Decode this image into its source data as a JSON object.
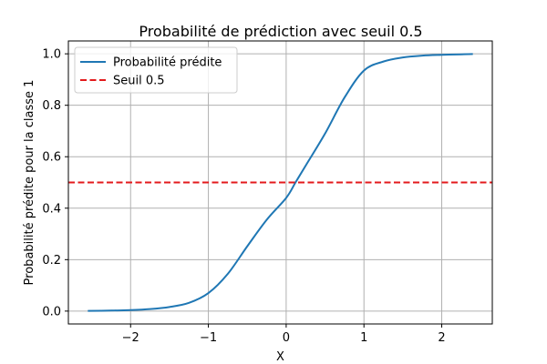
{
  "chart_data": {
    "type": "line",
    "title": "Probabilité de prédiction avec seuil 0.5",
    "xlabel": "X",
    "ylabel": "Probabilité prédite pour la classe 1",
    "xlim": [
      -2.8,
      2.65
    ],
    "ylim": [
      -0.05,
      1.05
    ],
    "xticks": [
      -2,
      -1,
      0,
      1,
      2
    ],
    "xtick_labels": [
      "−2",
      "−1",
      "0",
      "1",
      "2"
    ],
    "yticks": [
      0.0,
      0.2,
      0.4,
      0.6,
      0.8,
      1.0
    ],
    "ytick_labels": [
      "0.0",
      "0.2",
      "0.4",
      "0.6",
      "0.8",
      "1.0"
    ],
    "grid": true,
    "legend_position": "top-left",
    "series": [
      {
        "name": "Probabilité prédite",
        "style": "solid",
        "color": "#1f77b4",
        "x": [
          -2.55,
          -2.25,
          -2.0,
          -1.75,
          -1.5,
          -1.25,
          -1.0,
          -0.75,
          -0.5,
          -0.25,
          0.0,
          0.12,
          0.25,
          0.5,
          0.75,
          1.0,
          1.25,
          1.5,
          1.75,
          2.0,
          2.25,
          2.4
        ],
        "y": [
          0.001,
          0.002,
          0.004,
          0.008,
          0.016,
          0.032,
          0.07,
          0.145,
          0.252,
          0.355,
          0.44,
          0.5,
          0.565,
          0.69,
          0.83,
          0.935,
          0.97,
          0.986,
          0.993,
          0.996,
          0.998,
          0.999
        ]
      },
      {
        "name": "Seuil 0.5",
        "style": "dashed",
        "color": "#e31a1c",
        "x": [
          -2.8,
          2.65
        ],
        "y": [
          0.5,
          0.5
        ]
      }
    ]
  }
}
